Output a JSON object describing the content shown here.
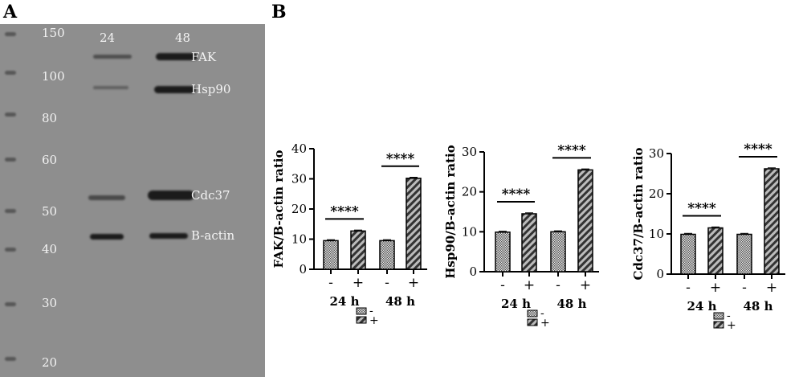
{
  "panels": {
    "a": "A",
    "b": "B"
  },
  "blot": {
    "lanes": [
      "24",
      "48"
    ],
    "mw_markers": [
      "150",
      "100",
      "80",
      "60",
      "50",
      "40",
      "30",
      "20"
    ],
    "proteins": [
      "FAK",
      "Hsp90",
      "Cdc37",
      "B-actin"
    ]
  },
  "chart_data": [
    {
      "type": "bar",
      "ylabel": "FAK/B-actin ratio",
      "ylim": [
        0,
        40
      ],
      "yticks": [
        0,
        10,
        20,
        30,
        40
      ],
      "groups": [
        "24 h",
        "48 h"
      ],
      "bar_labels": [
        "-",
        "+",
        "-",
        "+"
      ],
      "series": [
        {
          "name": "-",
          "values": [
            9.5,
            9.5
          ]
        },
        {
          "name": "+",
          "values": [
            12.7,
            30.2
          ]
        }
      ],
      "significance": [
        "****",
        "****"
      ],
      "legend": [
        "-",
        "+"
      ]
    },
    {
      "type": "bar",
      "ylabel": "Hsp90/B-actin ratio",
      "ylim": [
        0,
        30
      ],
      "yticks": [
        0,
        10,
        20,
        30
      ],
      "groups": [
        "24 h",
        "48 h"
      ],
      "bar_labels": [
        "-",
        "+",
        "-",
        "+"
      ],
      "series": [
        {
          "name": "-",
          "values": [
            9.9,
            10.0
          ]
        },
        {
          "name": "+",
          "values": [
            14.5,
            25.5
          ]
        }
      ],
      "significance": [
        "****",
        "****"
      ],
      "legend": [
        "-",
        "+"
      ]
    },
    {
      "type": "bar",
      "ylabel": "Cdc37/B-actin ratio",
      "ylim": [
        0,
        30
      ],
      "yticks": [
        0,
        10,
        20,
        30
      ],
      "groups": [
        "24 h",
        "48 h"
      ],
      "bar_labels": [
        "-",
        "+",
        "-",
        "+"
      ],
      "series": [
        {
          "name": "-",
          "values": [
            9.9,
            9.9
          ]
        },
        {
          "name": "+",
          "values": [
            11.5,
            26.2
          ]
        }
      ],
      "significance": [
        "****",
        "****"
      ],
      "legend": [
        "-",
        "+"
      ]
    }
  ]
}
